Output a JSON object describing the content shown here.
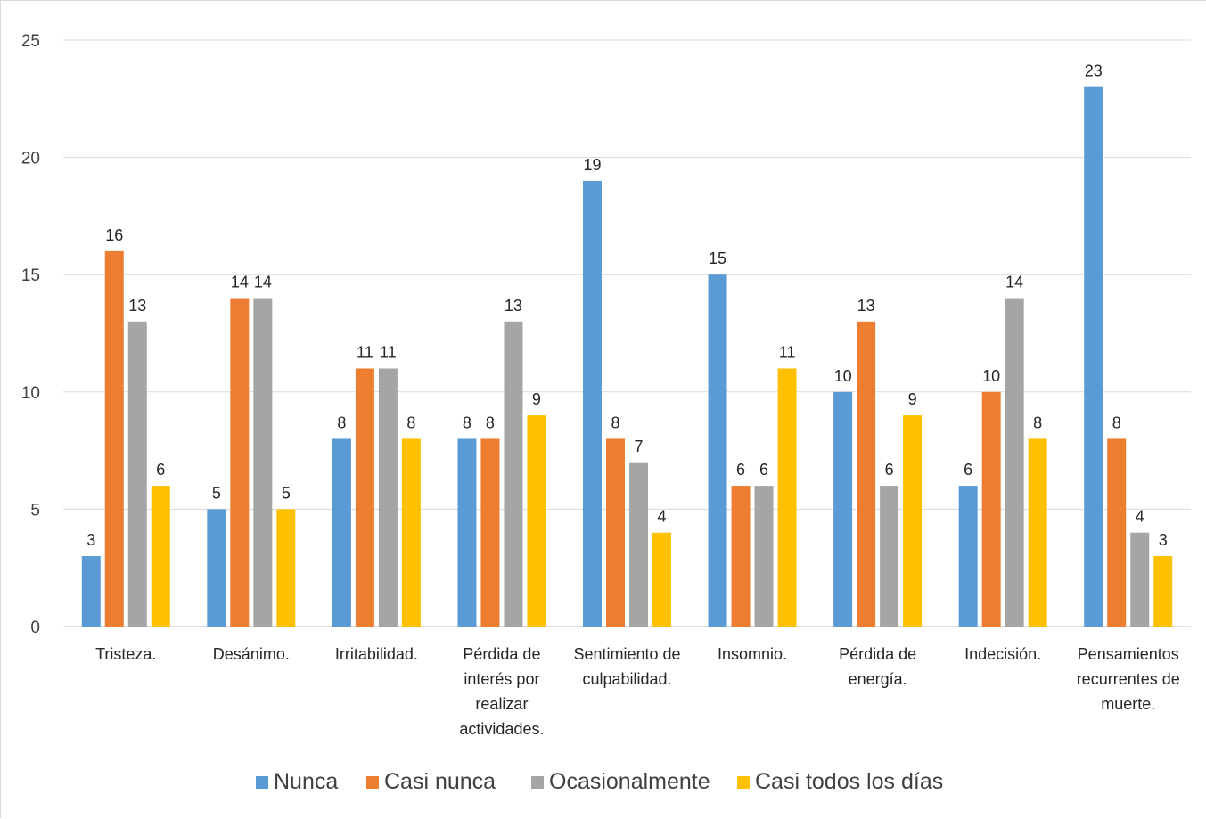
{
  "chart_data": {
    "type": "bar",
    "categories": [
      "Tristeza.",
      "Desánimo.",
      "Irritabilidad.",
      "Pérdida de interés por realizar actividades.",
      "Sentimiento de culpabilidad.",
      "Insomnio.",
      "Pérdida de energía.",
      "Indecisión.",
      "Pensamientos recurrentes de muerte."
    ],
    "category_lines": [
      [
        "Tristeza."
      ],
      [
        "Desánimo."
      ],
      [
        "Irritabilidad."
      ],
      [
        "Pérdida de",
        "interés por",
        "realizar",
        "actividades."
      ],
      [
        "Sentimiento de",
        "culpabilidad."
      ],
      [
        "Insomnio."
      ],
      [
        "Pérdida de",
        "energía."
      ],
      [
        "Indecisión."
      ],
      [
        "Pensamientos",
        "recurrentes de",
        "muerte."
      ]
    ],
    "series": [
      {
        "name": "Nunca",
        "color": "#5b9bd5",
        "values": [
          3,
          5,
          8,
          8,
          19,
          15,
          10,
          6,
          23
        ]
      },
      {
        "name": "Casi nunca",
        "color": "#ed7d31",
        "values": [
          16,
          14,
          11,
          8,
          8,
          6,
          13,
          10,
          8
        ]
      },
      {
        "name": "Ocasionalmente",
        "color": "#a5a5a5",
        "values": [
          13,
          14,
          11,
          13,
          7,
          6,
          6,
          14,
          4
        ]
      },
      {
        "name": "Casi todos los días",
        "color": "#ffc000",
        "values": [
          6,
          5,
          8,
          9,
          4,
          11,
          9,
          8,
          3
        ]
      }
    ],
    "ylim": [
      0,
      25
    ],
    "yticks": [
      0,
      5,
      10,
      15,
      20,
      25
    ],
    "grid": true,
    "data_labels": true,
    "legend_position": "bottom"
  }
}
